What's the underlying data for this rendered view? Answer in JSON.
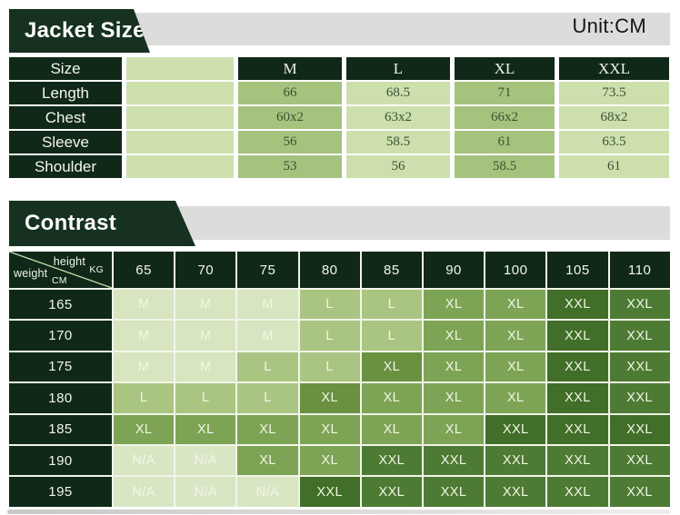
{
  "header": {
    "jacket_title": "Jacket Size",
    "unit_label": "Unit:CM",
    "contrast_title": "Contrast"
  },
  "corner": {
    "top_label": "height",
    "top_unit": "KG",
    "bottom_label": "weight",
    "bottom_unit": "CM"
  },
  "palette": {
    "banner-green": "#16311f",
    "strip-gray": "#dcdcda",
    "header-cell": "#102818",
    "jacket-blank": "#cde0ae",
    "jacket-med": "#a4c37d",
    "jacket-light": "#cddfad",
    "value-text": "#3d5233",
    "cell-m": "#d7e5c0",
    "cell-l": "#aac581",
    "cell-xl": "#7da455",
    "cell-xl-dark": "#699140",
    "cell-xxl": "#4e7b33",
    "cell-xxl-dark": "#416e28",
    "cell-na": "#d8e6c4",
    "grid-line": "#c2d6a8",
    "unit-text": "#151515",
    "bar-left": "#c8c8c6",
    "bar-right": "#ededeb"
  },
  "chart_data": [
    {
      "type": "table",
      "title": "Jacket Size",
      "unit": "CM",
      "columns": [
        "Size",
        "M",
        "L",
        "XL",
        "XXL"
      ],
      "rows": [
        [
          "Length",
          "66",
          "68.5",
          "71",
          "73.5"
        ],
        [
          "Chest",
          "60x2",
          "63x2",
          "66x2",
          "68x2"
        ],
        [
          "Sleeve",
          "56",
          "58.5",
          "61",
          "63.5"
        ],
        [
          "Shoulder",
          "53",
          "56",
          "58.5",
          "61"
        ]
      ]
    },
    {
      "type": "table",
      "title": "Contrast",
      "col_axis": {
        "label": "height",
        "unit": "KG"
      },
      "row_axis": {
        "label": "weight",
        "unit": "CM"
      },
      "columns": [
        "65",
        "70",
        "75",
        "80",
        "85",
        "90",
        "100",
        "105",
        "110"
      ],
      "row_headers": [
        "165",
        "170",
        "175",
        "180",
        "185",
        "190",
        "195"
      ],
      "rows": [
        [
          "M",
          "M",
          "M",
          "L",
          "L",
          "XL",
          "XL",
          "XXL",
          "XXL"
        ],
        [
          "M",
          "M",
          "M",
          "L",
          "L",
          "XL",
          "XL",
          "XXL",
          "XXL"
        ],
        [
          "M",
          "M",
          "L",
          "L",
          "XL",
          "XL",
          "XL",
          "XXL",
          "XXL"
        ],
        [
          "L",
          "L",
          "L",
          "XL",
          "XL",
          "XL",
          "XL",
          "XXL",
          "XXL"
        ],
        [
          "XL",
          "XL",
          "XL",
          "XL",
          "XL",
          "XL",
          "XXL",
          "XXL",
          "XXL"
        ],
        [
          "N/A",
          "N/A",
          "XL",
          "XL",
          "XXL",
          "XXL",
          "XXL",
          "XXL",
          "XXL"
        ],
        [
          "N/A",
          "N/A",
          "N/A",
          "XXL",
          "XXL",
          "XXL",
          "XXL",
          "XXL",
          "XXL"
        ]
      ]
    }
  ],
  "contrast_shades": [
    [
      "m",
      "m",
      "m",
      "l",
      "l",
      "xl",
      "xl",
      "xxl-dark",
      "xxl"
    ],
    [
      "m",
      "m",
      "m",
      "l",
      "l",
      "xl",
      "xl",
      "xxl-dark",
      "xxl"
    ],
    [
      "m",
      "m",
      "l",
      "l",
      "xl-dark",
      "xl",
      "xl",
      "xxl-dark",
      "xxl"
    ],
    [
      "l",
      "l",
      "l",
      "xl-dark",
      "xl",
      "xl",
      "xl",
      "xxl-dark",
      "xxl"
    ],
    [
      "xl",
      "xl",
      "xl",
      "xl",
      "xl",
      "xl",
      "xxl-dark",
      "xxl-dark",
      "xxl-dark"
    ],
    [
      "na",
      "na",
      "xl",
      "xl",
      "xxl",
      "xxl",
      "xxl",
      "xxl",
      "xxl"
    ],
    [
      "na",
      "na",
      "na",
      "xxl-dark",
      "xxl",
      "xxl",
      "xxl",
      "xxl",
      "xxl"
    ]
  ]
}
